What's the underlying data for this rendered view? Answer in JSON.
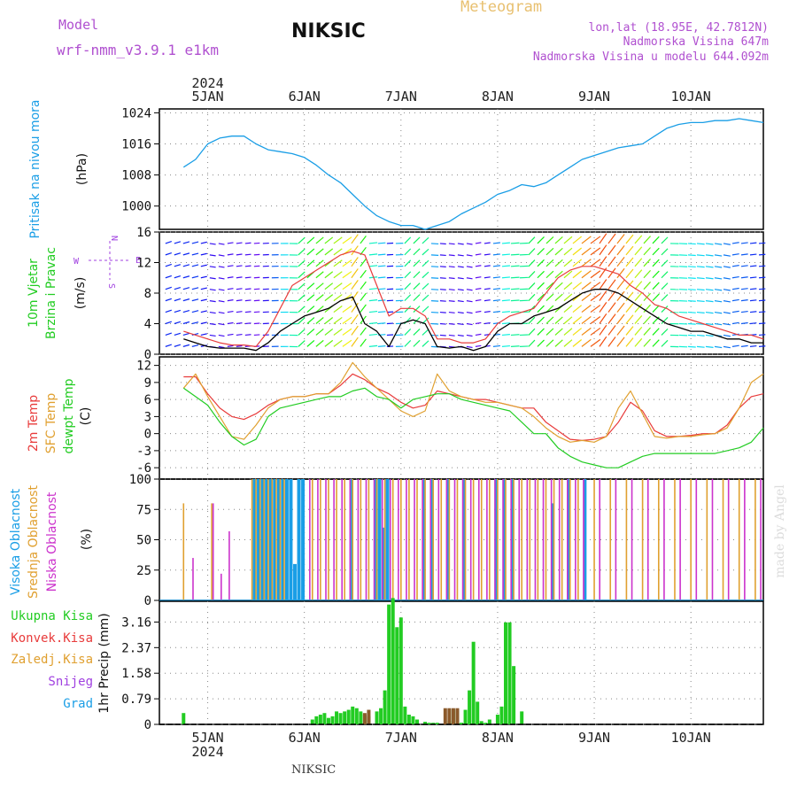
{
  "header": {
    "model_label": "Model",
    "model_name": "wrf-nmm_v3.9.1 e1km",
    "station": "NIKSIC",
    "meteogram": "Meteogram",
    "coords": "lon,lat (18.95E, 42.7812N)",
    "elevation": "Nadmorska Visina 647m",
    "model_elevation": "Nadmorska Visina u modelu 644.092m",
    "footer_station": "NIKSIC",
    "credit": "made by Angel"
  },
  "colors": {
    "pressure": "#1a9ee6",
    "red": "#e83b3b",
    "orange": "#e0a030",
    "green": "#22cc22",
    "magenta": "#cc33cc",
    "blue": "#1a9ee6",
    "purple": "#a040e0",
    "darkgreen": "#2a8a2a",
    "brown": "#8b5a2b"
  },
  "chart_data": [
    {
      "type": "line",
      "title": "Pritisak na nivou mora",
      "ylabel": "(hPa)",
      "top_x_labels": [
        "5JAN",
        "6JAN",
        "7JAN",
        "8JAN",
        "9JAN",
        "10JAN"
      ],
      "top_year": "2024",
      "x_unit": "hours from 2024-01-05 00:00",
      "ylim": [
        994,
        1025
      ],
      "yticks": [
        1000,
        1008,
        1016,
        1024
      ],
      "series": [
        {
          "x": [
            -6,
            -3,
            0,
            3,
            6,
            9,
            12,
            15,
            18,
            21,
            24,
            27,
            30,
            33,
            36,
            39,
            42,
            45,
            48,
            51,
            54,
            57,
            60,
            63,
            66,
            69,
            72,
            75,
            78,
            81,
            84,
            87,
            90,
            93,
            96,
            99,
            102,
            105,
            108,
            111,
            114,
            117,
            120,
            123,
            126,
            129,
            132,
            135,
            138
          ],
          "y": [
            1010,
            1012,
            1016,
            1017.5,
            1018,
            1018,
            1016,
            1014.5,
            1014,
            1013.5,
            1012.5,
            1010.5,
            1008,
            1006,
            1003,
            1000,
            997.5,
            996,
            995,
            995,
            994,
            995,
            996,
            998,
            999.5,
            1001,
            1003,
            1004,
            1005.5,
            1005,
            1006,
            1008,
            1010,
            1012,
            1013,
            1014,
            1015,
            1015.5,
            1016,
            1018,
            1020,
            1021,
            1021.5,
            1021.5,
            1022,
            1022,
            1022.5,
            1022,
            1021.5
          ]
        }
      ]
    },
    {
      "type": "line",
      "title": "10m Vjetar",
      "subtitle": "Brzina i Pravac",
      "ylabel": "(m/s)",
      "compass": [
        "N",
        "E",
        "S",
        "W"
      ],
      "ylim": [
        0,
        16
      ],
      "yticks": [
        0,
        4,
        8,
        12,
        16
      ],
      "series": [
        {
          "x": [
            -6,
            -3,
            0,
            3,
            6,
            9,
            12,
            15,
            18,
            21,
            24,
            27,
            30,
            33,
            36,
            39,
            42,
            45,
            48,
            51,
            54,
            57,
            60,
            63,
            66,
            69,
            72,
            75,
            78,
            81,
            84,
            87,
            90,
            93,
            96,
            99,
            102,
            105,
            108,
            111,
            114,
            117,
            120,
            123,
            126,
            129,
            132,
            135,
            138
          ],
          "y": [
            2,
            1.5,
            1,
            0.8,
            0.8,
            0.8,
            0.5,
            1.5,
            3,
            4,
            5,
            5.5,
            6,
            7,
            7.5,
            4,
            3,
            1,
            4,
            4.5,
            4,
            1,
            0.8,
            1,
            0.5,
            1,
            3,
            4,
            4,
            5,
            5.5,
            6,
            7,
            8,
            8.5,
            8.5,
            8,
            7,
            6,
            5,
            4,
            3.5,
            3,
            3,
            2.5,
            2,
            2,
            1.5,
            1.5
          ]
        },
        {
          "x": [
            -6,
            -3,
            0,
            3,
            6,
            9,
            12,
            15,
            18,
            21,
            24,
            27,
            30,
            33,
            36,
            39,
            42,
            45,
            48,
            51,
            54,
            57,
            60,
            63,
            66,
            69,
            72,
            75,
            78,
            81,
            84,
            87,
            90,
            93,
            96,
            99,
            102,
            105,
            108,
            111,
            114,
            117,
            120,
            123,
            126,
            129,
            132,
            135,
            138
          ],
          "y": [
            3,
            2.5,
            2,
            1.5,
            1.2,
            1.2,
            1,
            3,
            6,
            9,
            10,
            11,
            12,
            13,
            13.5,
            13,
            9,
            5,
            6,
            6,
            5,
            2,
            2,
            1.5,
            1.5,
            2,
            4,
            5,
            5.5,
            6,
            8,
            10,
            11,
            11.5,
            11.5,
            11,
            10.5,
            9,
            8,
            6.5,
            6,
            5,
            4.5,
            4,
            3.5,
            3,
            2.5,
            2.5,
            2
          ]
        }
      ]
    },
    {
      "type": "line",
      "title": "2m Temp",
      "subtitle": "SFC Temp",
      "subtitle2": "dewpt Temp",
      "ylabel": "(C)",
      "ylim": [
        -8,
        13.5
      ],
      "yticks": [
        -6,
        -3,
        0,
        3,
        6,
        9,
        12
      ],
      "series": [
        {
          "name": "2m Temp",
          "x": [
            -6,
            -3,
            0,
            3,
            6,
            9,
            12,
            15,
            18,
            21,
            24,
            27,
            30,
            33,
            36,
            39,
            42,
            45,
            48,
            51,
            54,
            57,
            60,
            63,
            66,
            69,
            72,
            75,
            78,
            81,
            84,
            87,
            90,
            93,
            96,
            99,
            102,
            105,
            108,
            111,
            114,
            117,
            120,
            123,
            126,
            129,
            132,
            135,
            138
          ],
          "y": [
            10,
            10,
            7,
            4.5,
            3,
            2.5,
            3.5,
            5,
            6,
            6.5,
            6.5,
            7,
            7,
            8.5,
            10.5,
            9.5,
            8,
            7,
            5.5,
            4.5,
            5,
            7.5,
            7,
            6.5,
            6,
            6,
            5.5,
            5,
            4.5,
            4.5,
            2,
            0.5,
            -1,
            -1.2,
            -1,
            -0.5,
            2,
            5.5,
            4,
            0.5,
            -0.5,
            -0.5,
            -0.3,
            0,
            0,
            1.5,
            4.5,
            6.5,
            7
          ]
        },
        {
          "name": "SFC Temp",
          "x": [
            -6,
            -3,
            0,
            3,
            6,
            9,
            12,
            15,
            18,
            21,
            24,
            27,
            30,
            33,
            36,
            39,
            42,
            45,
            48,
            51,
            54,
            57,
            60,
            63,
            66,
            69,
            72,
            75,
            78,
            81,
            84,
            87,
            90,
            93,
            96,
            99,
            102,
            105,
            108,
            111,
            114,
            117,
            120,
            123,
            126,
            129,
            132,
            135,
            138
          ],
          "y": [
            8,
            10.5,
            6.5,
            3,
            -0.5,
            -1,
            1.5,
            4.5,
            6,
            6.5,
            6.5,
            7,
            7,
            9,
            12.5,
            10,
            8,
            6,
            4,
            3,
            4,
            10.5,
            7.5,
            6.5,
            6,
            5.5,
            5.5,
            5,
            4.5,
            3,
            1,
            -0.5,
            -1.5,
            -1.2,
            -1.5,
            -0.5,
            4.5,
            7.5,
            3.5,
            -0.5,
            -0.8,
            -0.5,
            -0.5,
            -0.2,
            0,
            1,
            4.5,
            9,
            10.5
          ]
        },
        {
          "name": "dewpt Temp",
          "x": [
            -6,
            -3,
            0,
            3,
            6,
            9,
            12,
            15,
            18,
            21,
            24,
            27,
            30,
            33,
            36,
            39,
            42,
            45,
            48,
            51,
            54,
            57,
            60,
            63,
            66,
            69,
            72,
            75,
            78,
            81,
            84,
            87,
            90,
            93,
            96,
            99,
            102,
            105,
            108,
            111,
            114,
            117,
            120,
            123,
            126,
            129,
            132,
            135,
            138
          ],
          "y": [
            8,
            6.5,
            5,
            2,
            -0.5,
            -2,
            -1,
            3,
            4.5,
            5,
            5.5,
            6,
            6.5,
            6.5,
            7.5,
            8,
            6.5,
            6,
            4.5,
            6,
            6.5,
            7,
            7,
            6,
            5.5,
            5,
            4.5,
            4,
            2,
            0,
            0,
            -2.5,
            -4,
            -5,
            -5.5,
            -6,
            -6,
            -5,
            -4,
            -3.5,
            -3.5,
            -3.5,
            -3.5,
            -3.5,
            -3.5,
            -3,
            -2.5,
            -1.5,
            1
          ]
        }
      ]
    },
    {
      "type": "bar",
      "title": "Visoka Oblacnost",
      "subtitle": "Srednja Oblacnost",
      "subtitle2": "Niska Oblacnost",
      "ylabel": "(%)",
      "ylim": [
        0,
        100
      ],
      "yticks": [
        0,
        25,
        50,
        75,
        100
      ],
      "note": "hourly cloud cover; dense bars of 100% from about 6JAN to 10JAN",
      "series": [
        {
          "name": "Visoka Oblacnost",
          "x": [
            12,
            13,
            14,
            15,
            16,
            17,
            18,
            19,
            20,
            21,
            22,
            23,
            24,
            36,
            42,
            43,
            44,
            45,
            54,
            56,
            60,
            64,
            72,
            74,
            76,
            86,
            90,
            94
          ],
          "y": [
            100,
            100,
            100,
            100,
            100,
            100,
            100,
            100,
            100,
            100,
            30,
            100,
            100,
            100,
            100,
            100,
            60,
            100,
            100,
            100,
            100,
            100,
            100,
            100,
            100,
            80,
            100,
            100
          ]
        },
        {
          "name": "Srednja Oblacnost",
          "x": [
            -6,
            1,
            11,
            12,
            13,
            14,
            15,
            16,
            17,
            18,
            19,
            26,
            28,
            30,
            32,
            34,
            36,
            38,
            40,
            42,
            44,
            46,
            48,
            50,
            52,
            54,
            56,
            58,
            60,
            62,
            64,
            66,
            68,
            70,
            72,
            74,
            76,
            78,
            80,
            82,
            84,
            86,
            88,
            90,
            92,
            96,
            100,
            104,
            108,
            112,
            116,
            120,
            124,
            128,
            132,
            136
          ],
          "y": [
            80,
            80,
            100,
            100,
            100,
            100,
            100,
            100,
            100,
            100,
            100,
            100,
            100,
            100,
            100,
            100,
            100,
            100,
            100,
            100,
            100,
            100,
            100,
            100,
            100,
            100,
            100,
            100,
            100,
            100,
            100,
            100,
            100,
            100,
            100,
            100,
            100,
            100,
            100,
            100,
            100,
            100,
            100,
            100,
            100,
            100,
            100,
            100,
            100,
            100,
            100,
            100,
            100,
            100,
            100,
            100
          ]
        },
        {
          "name": "Niska Oblacnost",
          "x": [
            -4,
            1,
            3,
            5,
            25,
            27,
            29,
            31,
            33,
            35,
            37,
            39,
            41,
            43,
            45,
            47,
            49,
            51,
            53,
            55,
            57,
            59,
            61,
            63,
            65,
            67,
            69,
            71,
            73,
            75,
            77,
            79,
            81,
            83,
            85,
            87,
            89,
            91,
            93,
            97,
            101,
            105,
            109,
            113,
            117,
            121,
            125,
            129,
            133,
            137
          ],
          "y": [
            35,
            80,
            22,
            57,
            100,
            100,
            100,
            100,
            100,
            100,
            100,
            100,
            100,
            100,
            100,
            100,
            100,
            100,
            100,
            100,
            100,
            100,
            100,
            100,
            100,
            100,
            100,
            100,
            100,
            100,
            100,
            100,
            100,
            100,
            100,
            100,
            100,
            100,
            100,
            100,
            100,
            100,
            100,
            100,
            100,
            100,
            100,
            100,
            100,
            100
          ]
        }
      ]
    },
    {
      "type": "bar",
      "title": "Ukupna Kisa",
      "legend": [
        "Ukupna Kisa",
        "Konvek.Kisa",
        "Zaledj.Kisa",
        "Snijeg",
        "Grad"
      ],
      "ylabel": "1hr Precip (mm)",
      "bottom_x_labels": [
        "5JAN",
        "6JAN",
        "7JAN",
        "8JAN",
        "9JAN",
        "10JAN"
      ],
      "bottom_year": "2024",
      "ylim": [
        0,
        3.8
      ],
      "yticks": [
        0,
        0.79,
        1.58,
        2.37,
        3.16
      ],
      "series": [
        {
          "name": "Ukupna Kisa",
          "x": [
            -6,
            26,
            27,
            28,
            29,
            30,
            31,
            32,
            33,
            34,
            35,
            36,
            37,
            38,
            39,
            40,
            42,
            43,
            44,
            45,
            46,
            47,
            48,
            49,
            50,
            51,
            52,
            54,
            55,
            56,
            57,
            60,
            61,
            62,
            63,
            64,
            65,
            66,
            67,
            68,
            69,
            70,
            72,
            73,
            74,
            75,
            76,
            78
          ],
          "y": [
            0.35,
            0.15,
            0.25,
            0.3,
            0.35,
            0.2,
            0.25,
            0.4,
            0.35,
            0.4,
            0.45,
            0.55,
            0.5,
            0.4,
            0.3,
            0.25,
            0.4,
            0.5,
            1.05,
            3.7,
            3.9,
            3.0,
            3.3,
            0.55,
            0.3,
            0.25,
            0.15,
            0.08,
            0.05,
            0.05,
            0.05,
            0.1,
            0.45,
            0.45,
            0.05,
            0.45,
            1.05,
            2.55,
            0.7,
            0.1,
            0.05,
            0.15,
            0.3,
            0.55,
            3.15,
            3.15,
            1.8,
            0.4
          ]
        },
        {
          "name": "Konvek.Kisa",
          "x": [
            39,
            40,
            59,
            60,
            61,
            62
          ],
          "y": [
            0.35,
            0.45,
            0.5,
            0.5,
            0.5,
            0.5
          ]
        }
      ]
    }
  ]
}
